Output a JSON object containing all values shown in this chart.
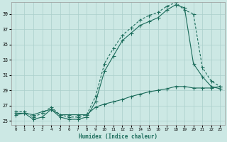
{
  "xlabel": "Humidex (Indice chaleur)",
  "background_color": "#cce8e4",
  "grid_color": "#aacfcb",
  "line_color": "#1a6b5a",
  "xlim": [
    -0.5,
    23.5
  ],
  "ylim": [
    24.5,
    40.5
  ],
  "yticks": [
    25,
    27,
    29,
    31,
    33,
    35,
    37,
    39
  ],
  "xticks": [
    0,
    1,
    2,
    3,
    4,
    5,
    6,
    7,
    8,
    9,
    10,
    11,
    12,
    13,
    14,
    15,
    16,
    17,
    18,
    19,
    20,
    21,
    22,
    23
  ],
  "series1_x": [
    0,
    1,
    2,
    3,
    4,
    5,
    6,
    7,
    8,
    9,
    10,
    11,
    12,
    13,
    14,
    15,
    16,
    17,
    18,
    19,
    20,
    21,
    22,
    23
  ],
  "series1_y": [
    26.0,
    26.0,
    25.2,
    25.5,
    26.5,
    25.5,
    25.2,
    25.2,
    25.5,
    27.5,
    31.5,
    33.5,
    35.5,
    36.5,
    37.5,
    38.0,
    38.5,
    39.5,
    40.2,
    39.8,
    32.5,
    30.8,
    29.5,
    29.2
  ],
  "series1_style": "-",
  "series2_x": [
    0,
    1,
    2,
    3,
    4,
    5,
    6,
    7,
    8,
    9,
    10,
    11,
    12,
    13,
    14,
    15,
    16,
    17,
    18,
    19,
    20,
    21,
    22,
    23
  ],
  "series2_y": [
    26.2,
    26.2,
    25.5,
    26.0,
    26.8,
    25.8,
    25.5,
    25.5,
    25.8,
    28.2,
    32.5,
    34.5,
    36.2,
    37.2,
    38.2,
    38.8,
    39.2,
    40.0,
    40.5,
    39.5,
    39.0,
    32.0,
    30.2,
    29.5
  ],
  "series2_style": "--",
  "series3_x": [
    0,
    1,
    2,
    3,
    4,
    5,
    6,
    7,
    8,
    9,
    10,
    11,
    12,
    13,
    14,
    15,
    16,
    17,
    18,
    19,
    20,
    21,
    22,
    23
  ],
  "series3_y": [
    25.8,
    26.0,
    25.8,
    26.2,
    26.5,
    25.8,
    25.8,
    25.8,
    25.8,
    26.8,
    27.2,
    27.5,
    27.8,
    28.2,
    28.5,
    28.8,
    29.0,
    29.2,
    29.5,
    29.5,
    29.3,
    29.3,
    29.3,
    29.5
  ],
  "series3_style": "-"
}
